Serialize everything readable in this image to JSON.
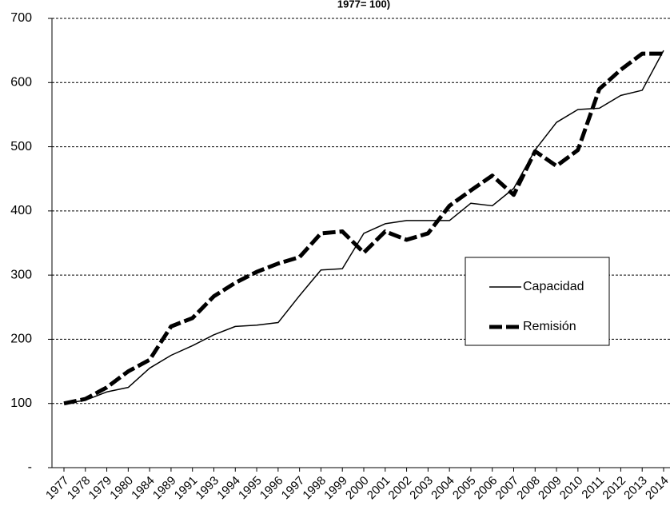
{
  "chart_data": {
    "type": "line",
    "title": "1977= 100)",
    "categories": [
      "1977",
      "1978",
      "1979",
      "1980",
      "1984",
      "1989",
      "1991",
      "1993",
      "1994",
      "1995",
      "1996",
      "1997",
      "1998",
      "1999",
      "2000",
      "2001",
      "2002",
      "2003",
      "2004",
      "2005",
      "2006",
      "2007",
      "2008",
      "2009",
      "2010",
      "2011",
      "2012",
      "2013",
      "2014"
    ],
    "series": [
      {
        "name": "Capacidad",
        "color": "#000000",
        "line_width": 1.5,
        "dashed": false,
        "values": [
          100,
          105,
          118,
          125,
          155,
          175,
          190,
          207,
          220,
          222,
          226,
          268,
          308,
          310,
          365,
          380,
          385,
          385,
          385,
          412,
          408,
          435,
          495,
          538,
          558,
          560,
          580,
          588,
          650
        ]
      },
      {
        "name": "Remisión",
        "color": "#000000",
        "line_width": 5,
        "dashed": true,
        "values": [
          100,
          107,
          125,
          150,
          168,
          220,
          233,
          267,
          288,
          305,
          318,
          328,
          365,
          368,
          335,
          368,
          355,
          365,
          408,
          432,
          455,
          425,
          493,
          470,
          495,
          590,
          620,
          645,
          645
        ]
      }
    ],
    "ylim": [
      0,
      700
    ],
    "yticks": [
      {
        "value": 0,
        "label": "-"
      },
      100,
      200,
      300,
      400,
      500,
      600,
      700
    ],
    "grid": true,
    "legend": "right"
  }
}
